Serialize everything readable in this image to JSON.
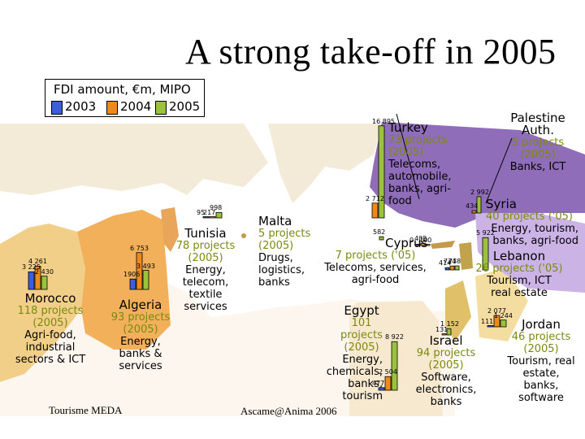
{
  "title": "A strong take-off in 2005",
  "legend": {
    "title": "FDI amount, €m, MIPO",
    "years": [
      "2003",
      "2004",
      "2005"
    ],
    "colors": [
      "#3a5fd9",
      "#ee8a1c",
      "#9ac23c"
    ]
  },
  "chart_data": {
    "type": "bar",
    "title": "FDI amount, €m, MIPO",
    "series_names": [
      "2003",
      "2004",
      "2005"
    ],
    "countries": [
      {
        "name": "Morocco",
        "values": [
          3225,
          4261,
          2430
        ],
        "labels": [
          "3 225",
          "4 261",
          "2 430"
        ],
        "projects": "118 projects (2005)",
        "sectors": "Agri-food, industrial sectors & ICT"
      },
      {
        "name": "Algeria",
        "values": [
          1906,
          6753,
          3493
        ],
        "labels": [
          "1906",
          "6 753",
          "3 493"
        ],
        "projects": "93 projects (2005)",
        "sectors": "Energy, banks & services"
      },
      {
        "name": "Tunisia",
        "values": [
          95,
          217,
          998
        ],
        "labels": [
          "95",
          "217",
          "998"
        ],
        "projects": "78 projects (2005)",
        "sectors": "Energy, telecom, textile services"
      },
      {
        "name": "Malta",
        "values": [
          null,
          null,
          582
        ],
        "labels": [
          "",
          "",
          "582"
        ],
        "projects": "5 projects (2005)",
        "sectors": "Drugs, logistics, banks"
      },
      {
        "name": "Turkey",
        "values": [
          null,
          2712,
          16895
        ],
        "labels": [
          "",
          "2 712",
          "16 895"
        ],
        "projects": "73 projects (2005)",
        "sectors": "Telecoms, automobile, banks, agri-food"
      },
      {
        "name": "Cyprus",
        "values": [
          0,
          408,
          100
        ],
        "labels": [
          "0",
          "408",
          "100"
        ],
        "projects": "7 projects ('05)",
        "sectors": "Telecoms, services, agri-food"
      },
      {
        "name": "Syria",
        "values": [
          null,
          434,
          2992
        ],
        "labels": [
          "",
          "434",
          "2 992"
        ],
        "projects": "40 projects ('05)",
        "sectors": "Energy, tourism, banks, agri-food"
      },
      {
        "name": "Lebanon",
        "values": [
          414,
          724,
          738
        ],
        "labels": [
          "414",
          "724",
          "738"
        ],
        "projects": "26 projects ('05)",
        "sectors": "Tourism, ICT real estate"
      },
      {
        "name": "Palestine Auth.",
        "values": [
          null,
          null,
          5922
        ],
        "labels": [
          "",
          "",
          "5 922"
        ],
        "projects": "5 projects (2005)",
        "sectors": "Banks, ICT"
      },
      {
        "name": "Egypt",
        "values": [
          477,
          2504,
          8922
        ],
        "labels": [
          "477",
          "2 504",
          "8 922"
        ],
        "projects": "101 projects (2005)",
        "sectors": "Energy, chemicals, banks, tourism"
      },
      {
        "name": "Israel",
        "values": [
          null,
          131,
          1152
        ],
        "labels": [
          "",
          "131",
          "1 152"
        ],
        "projects": "94 projects (2005)",
        "sectors": "Software, electronics, banks"
      },
      {
        "name": "Jordan",
        "values": [
          111,
          2077,
          1244
        ],
        "labels": [
          "111",
          "2 077",
          "1 244"
        ],
        "projects": "46 projects (2005)",
        "sectors": "Tourism, real estate, banks, software"
      }
    ]
  },
  "footer": {
    "left": "Tourisme MEDA",
    "right": "Ascame@Anima 2006"
  }
}
